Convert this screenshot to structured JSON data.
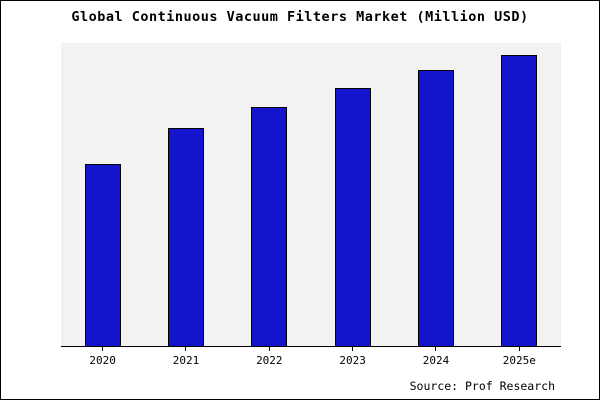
{
  "title": "Global Continuous Vacuum Filters Market (Million USD)",
  "source": "Source: Prof Research",
  "colors": {
    "bar_fill": "#1414cc",
    "bar_border": "#000000",
    "plot_background": "#f2f2f2",
    "frame_border": "#000000"
  },
  "chart_data": {
    "type": "bar",
    "title": "Global Continuous Vacuum Filters Market (Million USD)",
    "categories": [
      "2020",
      "2021",
      "2022",
      "2023",
      "2024",
      "2025e"
    ],
    "values": [
      60,
      72,
      79,
      85,
      91,
      96
    ],
    "xlabel": "",
    "ylabel": "",
    "ylim": [
      0,
      100
    ],
    "grid": false,
    "legend_position": "none",
    "y_axis_ticks_visible": false,
    "annotation": "Source: Prof Research"
  }
}
